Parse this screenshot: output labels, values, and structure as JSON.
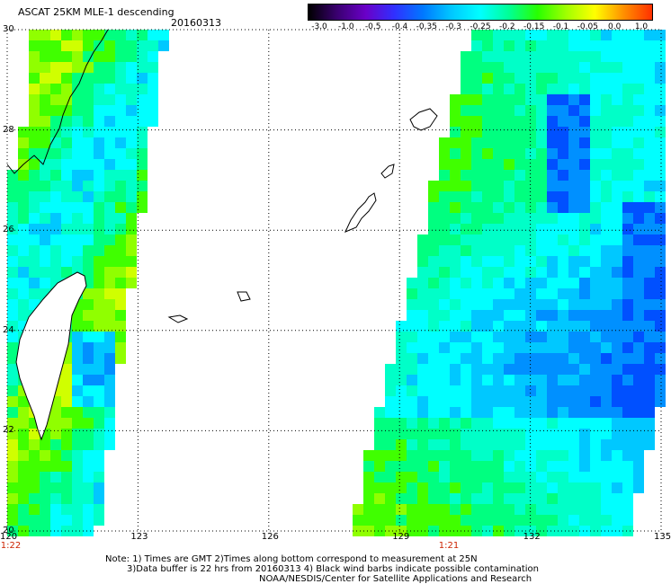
{
  "header": {
    "title": "ASCAT 25KM MLE-1 descending",
    "date": "20160313"
  },
  "colorbar": {
    "labels": [
      "-3.0",
      "-1.0",
      "-0.5",
      "-0.4",
      "-0.35",
      "-0.3",
      "-0.25",
      "-0.2",
      "-0.15",
      "-0.1",
      "-0.05",
      "0.0",
      "1.0"
    ],
    "colors": [
      "#000000",
      "#3a0070",
      "#6a00c8",
      "#3030ff",
      "#0078ff",
      "#00c8ff",
      "#00ffff",
      "#00ff96",
      "#28ff00",
      "#a0ff00",
      "#ffff00",
      "#ff9000",
      "#ff3000"
    ]
  },
  "axes": {
    "lon_ticks": [
      "120",
      "123",
      "126",
      "129",
      "132",
      "135"
    ],
    "lat_ticks": [
      "30",
      "28",
      "26",
      "24",
      "22",
      "20"
    ],
    "lon_range": [
      120,
      135
    ],
    "lat_range": [
      20,
      30
    ]
  },
  "swaths": [
    {
      "time": "1:22"
    },
    {
      "time": "1:21"
    }
  ],
  "notes": {
    "line1": "Note: 1) Times are GMT 2)Times along bottom correspond to measurement at 25N",
    "line2": "3)Data buffer is 22 hrs from 20160313 4) Black wind barbs indicate possible contamination",
    "line3": "NOAA/NESDIS/Center for Satellite Applications and Research"
  }
}
